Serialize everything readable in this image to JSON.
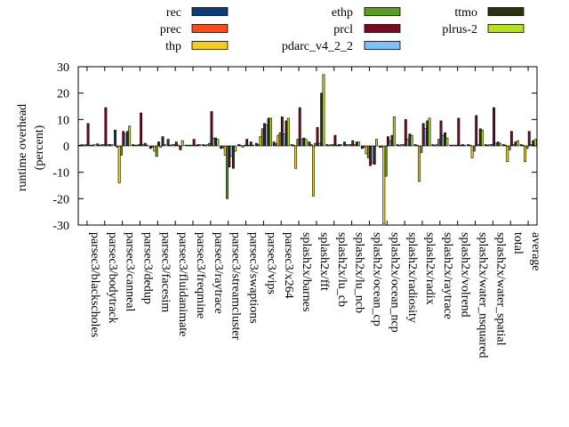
{
  "chart_data": {
    "type": "bar",
    "ylabel_lines": [
      "runtime overhead",
      "(percent)"
    ],
    "ylim": [
      -30,
      30
    ],
    "yticks": [
      -30,
      -20,
      -10,
      0,
      10,
      20,
      30
    ],
    "grid": false,
    "legend_position": "top",
    "categories": [
      "parsec3/blackscholes",
      "parsec3/bodytrack",
      "parsec3/canneal",
      "parsec3/dedup",
      "parsec3/facesim",
      "parsec3/fluidanimate",
      "parsec3/freqmine",
      "parsec3/raytrace",
      "parsec3/streamcluster",
      "parsec3/swaptions",
      "parsec3/vips",
      "parsec3/x264",
      "splash2x/barnes",
      "splash2x/fft",
      "splash2x/lu_cb",
      "splash2x/lu_ncb",
      "splash2x/ocean_cp",
      "splash2x/ocean_ncp",
      "splash2x/radiosity",
      "splash2x/radix",
      "splash2x/raytrace",
      "splash2x/volrend",
      "splash2x/water_nsquared",
      "splash2x/water_spatial",
      "total",
      "average"
    ],
    "series": [
      {
        "name": "rec",
        "color": "#0a3d7a",
        "values": [
          0.3,
          0.8,
          6.0,
          0.5,
          -1.0,
          2.5,
          0.3,
          0.5,
          -1.0,
          0.5,
          1.0,
          1.5,
          0.5,
          1.5,
          0.5,
          1.5,
          -1.0,
          -0.5,
          0.5,
          0.5,
          0.5,
          0.3,
          0.5,
          0.5,
          0.5,
          0.5
        ]
      },
      {
        "name": "prec",
        "color": "#ff4b1a",
        "values": [
          0.5,
          0.3,
          -0.5,
          0.3,
          -0.5,
          0.3,
          0.3,
          0.3,
          -0.8,
          0.3,
          0.5,
          0.8,
          0.3,
          0.5,
          0.3,
          0.5,
          -0.5,
          -0.5,
          0.3,
          0.3,
          0.3,
          0.3,
          0.3,
          0.3,
          0.3,
          0.3
        ]
      },
      {
        "name": "thp",
        "color": "#f5cd1e",
        "values": [
          0.3,
          0.5,
          -14.0,
          0.3,
          -2.0,
          0.5,
          0.3,
          0.5,
          -3.5,
          -0.5,
          3.5,
          4.0,
          -8.5,
          -19.0,
          0.5,
          0.5,
          -3.0,
          -29.5,
          0.5,
          -13.5,
          0.5,
          0.3,
          -4.5,
          0.5,
          -6.0,
          -6.0
        ]
      },
      {
        "name": "ethp",
        "color": "#5a9e1e",
        "values": [
          0.5,
          0.5,
          -3.5,
          0.5,
          -4.0,
          0.5,
          0.3,
          1.0,
          -20.0,
          0.3,
          6.5,
          5.0,
          2.5,
          1.0,
          0.5,
          0.5,
          -4.5,
          -11.5,
          0.5,
          -2.5,
          2.5,
          0.3,
          -2.0,
          0.5,
          -1.5,
          -1.0
        ]
      },
      {
        "name": "prcl",
        "color": "#7a0a22",
        "values": [
          8.5,
          14.5,
          5.5,
          12.5,
          1.5,
          1.5,
          2.5,
          13.0,
          -8.0,
          2.5,
          8.5,
          11.0,
          14.5,
          7.0,
          4.0,
          2.0,
          -7.5,
          3.5,
          10.0,
          8.5,
          9.5,
          10.5,
          11.5,
          14.5,
          5.5,
          5.5
        ]
      },
      {
        "name": "pdarc_v4_2_2",
        "color": "#7fbfff",
        "values": [
          0.3,
          0.5,
          4.5,
          0.5,
          -0.5,
          0.3,
          0.3,
          3.0,
          -4.0,
          0.3,
          8.0,
          4.5,
          2.5,
          1.0,
          0.3,
          0.5,
          -6.5,
          2.0,
          2.5,
          6.5,
          4.0,
          0.3,
          0.5,
          1.0,
          0.5,
          0.5
        ]
      },
      {
        "name": "ttmo",
        "color": "#2a3510",
        "values": [
          0.3,
          0.5,
          5.5,
          1.0,
          3.5,
          -1.5,
          0.5,
          3.0,
          -8.5,
          1.5,
          10.5,
          9.5,
          3.0,
          20.0,
          0.5,
          1.5,
          -7.0,
          4.0,
          4.5,
          9.5,
          5.0,
          0.5,
          6.5,
          1.5,
          1.5,
          2.0
        ]
      },
      {
        "name": "plrus-2",
        "color": "#b5e01e",
        "values": [
          0.5,
          0.5,
          7.5,
          0.3,
          0.5,
          2.0,
          0.5,
          2.5,
          -2.0,
          0.3,
          10.5,
          10.5,
          2.5,
          27.0,
          0.5,
          1.5,
          2.5,
          11.0,
          4.0,
          10.5,
          3.0,
          0.3,
          6.0,
          1.0,
          2.0,
          2.5
        ]
      }
    ]
  }
}
